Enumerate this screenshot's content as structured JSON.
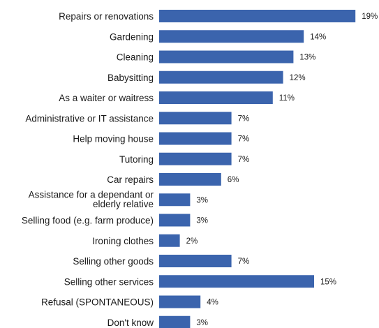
{
  "chart_data": {
    "type": "bar",
    "orientation": "horizontal",
    "categories": [
      "Repairs or renovations",
      "Gardening",
      "Cleaning",
      "Babysitting",
      "As a waiter or waitress",
      "Administrative or IT assistance",
      "Help moving house",
      "Tutoring",
      "Car repairs",
      "Assistance for a dependant or elderly relative",
      "Selling food (e.g. farm produce)",
      "Ironing clothes",
      "Selling other goods",
      "Selling other services",
      "Refusal (SPONTANEOUS)",
      "Don't know"
    ],
    "category_lines": [
      [
        "Repairs or renovations"
      ],
      [
        "Gardening"
      ],
      [
        "Cleaning"
      ],
      [
        "Babysitting"
      ],
      [
        "As a waiter or waitress"
      ],
      [
        "Administrative or IT assistance"
      ],
      [
        "Help moving house"
      ],
      [
        "Tutoring"
      ],
      [
        "Car repairs"
      ],
      [
        "Assistance for a dependant or",
        "elderly relative"
      ],
      [
        "Selling food (e.g. farm produce)"
      ],
      [
        "Ironing clothes"
      ],
      [
        "Selling other goods"
      ],
      [
        "Selling other services"
      ],
      [
        "Refusal (SPONTANEOUS)"
      ],
      [
        "Don't know"
      ]
    ],
    "values": [
      19,
      14,
      13,
      12,
      11,
      7,
      7,
      7,
      6,
      3,
      3,
      2,
      7,
      15,
      4,
      3
    ],
    "value_labels": [
      "19%",
      "14%",
      "13%",
      "12%",
      "11%",
      "7%",
      "7%",
      "7%",
      "6%",
      "3%",
      "3%",
      "2%",
      "7%",
      "15%",
      "4%",
      "3%"
    ],
    "unit": "%",
    "xlim": [
      0,
      19
    ],
    "grid": false,
    "legend": "none",
    "colors": {
      "bar": "#3b64ad",
      "text": "#1a1a1a",
      "background": "#ffffff"
    }
  }
}
